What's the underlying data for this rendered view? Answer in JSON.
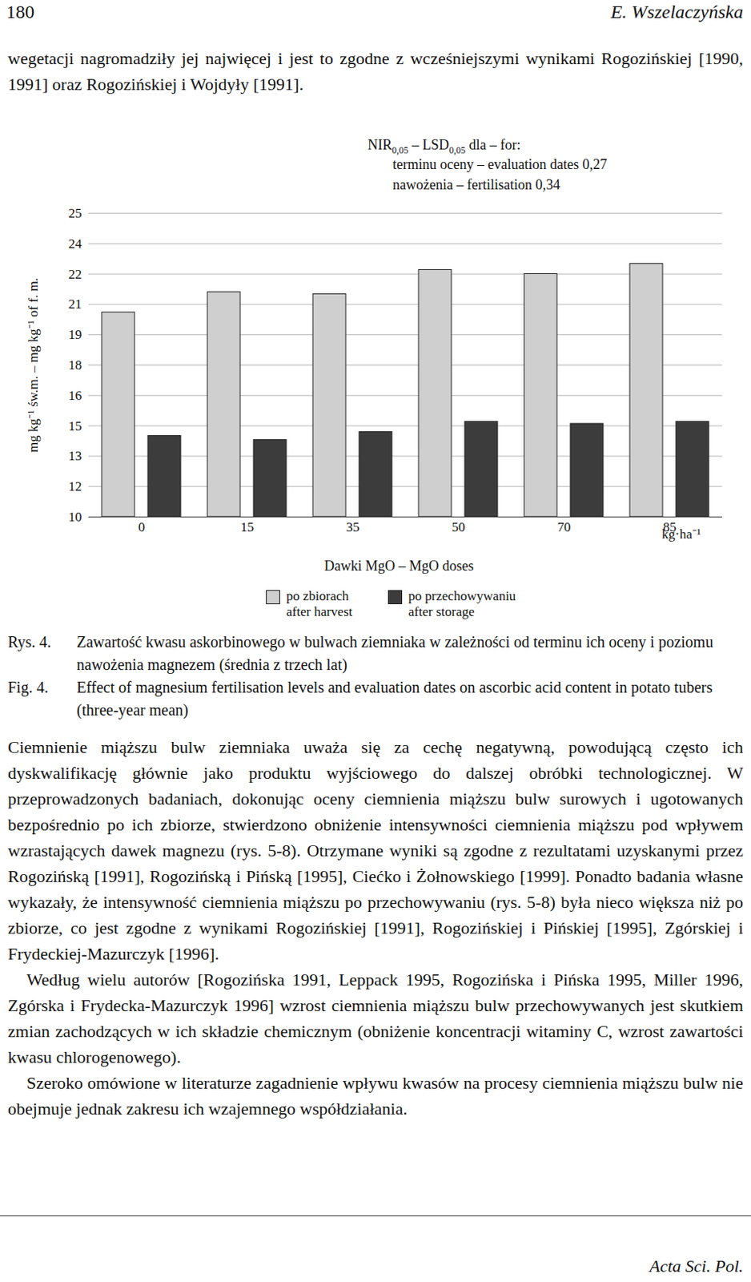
{
  "header": {
    "page": "180",
    "author": "E. Wszelaczyńska"
  },
  "paragraphs_before": [
    "wegetacji nagromadziły jej najwięcej i jest to zgodne z wcześniejszymi wynikami Rogozińskiej [1990, 1991] oraz Rogozińskiej i Wojdyły [1991]."
  ],
  "chart_data": {
    "type": "bar",
    "y_label": "mg kg⁻¹ św.m. – mg kg⁻¹ of f. m.",
    "x_label": "Dawki MgO – MgO doses",
    "x_unit": "kg·ha⁻¹",
    "lsd_heading": [
      {
        "text": "NIR"
      },
      {
        "sub": "0,05"
      },
      {
        "text": " – LSD"
      },
      {
        "sub": "0,05"
      },
      {
        "text": " dla – for:"
      }
    ],
    "lsd_lines": [
      "terminu oceny – evaluation dates 0,27",
      "nawożenia – fertilisation 0,34"
    ],
    "categories": [
      "0",
      "15",
      "35",
      "50",
      "70",
      "85"
    ],
    "series": [
      {
        "name": "po zbiorach\nafter harvest",
        "color": "#cfcfcf",
        "values": [
          20.1,
          21.1,
          21.0,
          22.2,
          22.0,
          22.5
        ]
      },
      {
        "name": "po przechowywaniu\nafter storage",
        "color": "#3c3c3c",
        "values": [
          14.0,
          13.8,
          14.2,
          14.7,
          14.6,
          14.7
        ]
      }
    ],
    "ylim": [
      10,
      25
    ],
    "yticks": [
      10,
      {
        "value": 11.5,
        "label": "12"
      },
      13,
      {
        "value": 14.5,
        "label": "15"
      },
      16,
      {
        "value": 17.5,
        "label": "18"
      },
      19,
      {
        "value": 20.5,
        "label": "21"
      },
      22,
      {
        "value": 23.5,
        "label": "24"
      },
      25
    ],
    "grid": true,
    "legend": "bottom"
  },
  "caption": {
    "pl_label": "Rys. 4.",
    "pl_text": "Zawartość kwasu askorbinowego w bulwach ziemniaka w zależności od terminu ich oceny i poziomu nawożenia magnezem (średnia z trzech lat)",
    "en_label": "Fig. 4.",
    "en_text": "Effect of magnesium fertilisation levels and evaluation dates on ascorbic acid content in potato tubers (three-year mean)"
  },
  "paragraphs_after": [
    "Ciemnienie miąższu bulw ziemniaka uważa się za cechę negatywną, powodującą często ich dyskwalifikację głównie jako produktu wyjściowego do dalszej obróbki technologicznej. W przeprowadzonych badaniach, dokonując oceny ciemnienia miąższu bulw surowych i ugotowanych bezpośrednio po ich zbiorze, stwierdzono obniżenie intensywności ciemnienia miąższu pod wpływem wzrastających dawek magnezu (rys. 5-8). Otrzymane wyniki są zgodne z rezultatami uzyskanymi przez Rogozińską [1991], Rogozińską i Pińską [1995], Ciećko i Żołnowskiego [1999]. Ponadto badania własne wykazały, że intensywność ciemnienia miąższu po przechowywaniu (rys. 5-8) była nieco większa niż po zbiorze, co jest zgodne z wynikami Rogozińskiej [1991], Rogozińskiej i Pińskiej [1995], Zgórskiej i Frydeckiej-Mazurczyk [1996].",
    "Według wielu autorów [Rogozińska 1991, Leppack 1995, Rogozińska i Pińska 1995, Miller 1996, Zgórska i Frydecka-Mazurczyk 1996] wzrost ciemnienia miąższu bulw przechowywanych jest skutkiem zmian zachodzących w ich składzie chemicznym (obniżenie koncentracji witaminy C, wzrost zawartości kwasu chlorogenowego).",
    "Szeroko omówione w literaturze zagadnienie wpływu kwasów na procesy ciemnienia miąższu bulw nie obejmuje jednak zakresu ich wzajemnego współdziałania."
  ],
  "footer": "Acta Sci. Pol."
}
